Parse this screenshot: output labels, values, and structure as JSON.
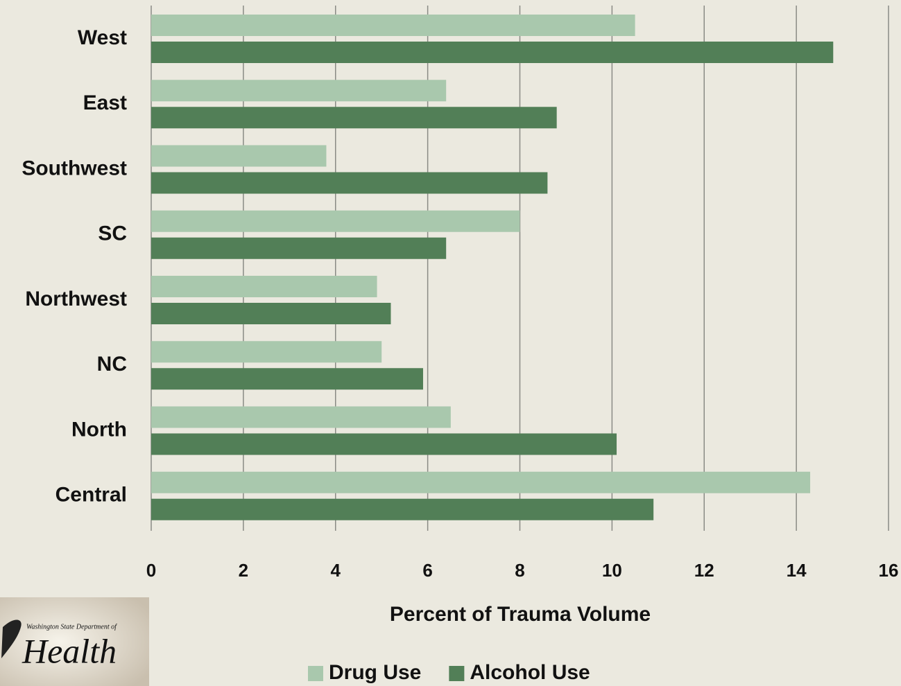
{
  "chart_data": {
    "type": "hbar",
    "categories": [
      "West",
      "East",
      "Southwest",
      "SC",
      "Northwest",
      "NC",
      "North",
      "Central"
    ],
    "series": [
      {
        "name": "Drug Use",
        "color": "#a9c8ad",
        "values": [
          10.5,
          6.4,
          3.8,
          8.0,
          4.9,
          5.0,
          6.5,
          14.3
        ]
      },
      {
        "name": "Alcohol Use",
        "color": "#527f57",
        "values": [
          14.8,
          8.8,
          8.6,
          6.4,
          5.2,
          5.9,
          10.1,
          10.9
        ]
      }
    ],
    "xlabel": "Percent of Trauma Volume",
    "xlim": [
      0,
      16
    ],
    "xticks": [
      0,
      2,
      4,
      6,
      8,
      10,
      12,
      14,
      16
    ],
    "grid": true,
    "legend": "bottom"
  },
  "logo": {
    "line1": "Washington State Department of",
    "line2": "Health"
  }
}
